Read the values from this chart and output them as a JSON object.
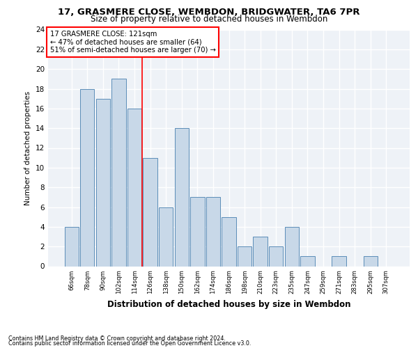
{
  "title1": "17, GRASMERE CLOSE, WEMBDON, BRIDGWATER, TA6 7PR",
  "title2": "Size of property relative to detached houses in Wembdon",
  "xlabel": "Distribution of detached houses by size in Wembdon",
  "ylabel": "Number of detached properties",
  "categories": [
    "66sqm",
    "78sqm",
    "90sqm",
    "102sqm",
    "114sqm",
    "126sqm",
    "138sqm",
    "150sqm",
    "162sqm",
    "174sqm",
    "186sqm",
    "198sqm",
    "210sqm",
    "223sqm",
    "235sqm",
    "247sqm",
    "259sqm",
    "271sqm",
    "283sqm",
    "295sqm",
    "307sqm"
  ],
  "values": [
    4,
    18,
    17,
    19,
    16,
    11,
    6,
    14,
    7,
    7,
    5,
    2,
    3,
    2,
    4,
    1,
    0,
    1,
    0,
    1,
    0
  ],
  "bar_color": "#c8d8e8",
  "bar_edge_color": "#5b8db8",
  "red_line_x": 4.5,
  "annotation_title": "17 GRASMERE CLOSE: 121sqm",
  "annotation_line1": "← 47% of detached houses are smaller (64)",
  "annotation_line2": "51% of semi-detached houses are larger (70) →",
  "ylim": [
    0,
    24
  ],
  "yticks": [
    0,
    2,
    4,
    6,
    8,
    10,
    12,
    14,
    16,
    18,
    20,
    22,
    24
  ],
  "footer1": "Contains HM Land Registry data © Crown copyright and database right 2024.",
  "footer2": "Contains public sector information licensed under the Open Government Licence v3.0.",
  "background_color": "#eef2f7"
}
